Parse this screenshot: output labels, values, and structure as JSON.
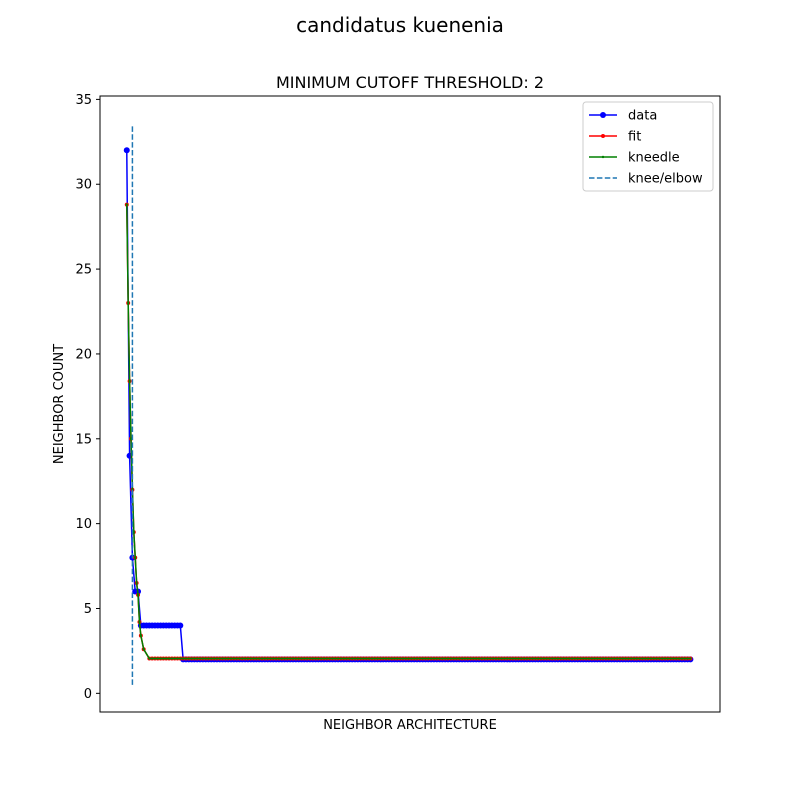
{
  "chart_data": {
    "type": "line",
    "suptitle": "candidatus kuenenia",
    "title": "MINIMUM CUTOFF THRESHOLD: 2",
    "xlabel": "NEIGHBOR ARCHITECTURE",
    "ylabel": "NEIGHBOR COUNT",
    "xlim": [
      -9.5,
      210.5
    ],
    "ylim": [
      -1.1,
      35.2
    ],
    "yticks": [
      0,
      5,
      10,
      15,
      20,
      25,
      30,
      35
    ],
    "xticks_shown": false,
    "legend_position": "top-right",
    "series": [
      {
        "name": "data",
        "color": "#0000ff",
        "marker": "circle",
        "dashed": false,
        "x": [
          0,
          1,
          2,
          3,
          4,
          5,
          6,
          7,
          8,
          9,
          10,
          11,
          12,
          13,
          14,
          15,
          16,
          17,
          18,
          19,
          20,
          200
        ],
        "y": [
          32,
          14,
          8,
          6,
          6,
          4,
          4,
          4,
          4,
          4,
          4,
          4,
          4,
          4,
          4,
          4,
          4,
          4,
          4,
          4,
          2,
          2
        ]
      },
      {
        "name": "fit",
        "color": "#ff0000",
        "marker": "point",
        "dashed": false,
        "x": [
          0,
          0.5,
          1,
          1.5,
          2,
          2.5,
          3,
          3.5,
          4,
          4.5,
          5,
          6,
          8,
          200
        ],
        "y": [
          28.8,
          23,
          18.4,
          15,
          12,
          9.5,
          8,
          6.5,
          5.8,
          4.2,
          3.4,
          2.6,
          2.05,
          2.05
        ]
      },
      {
        "name": "kneedle",
        "color": "#008000",
        "marker": "tiny",
        "dashed": false,
        "x": [
          0,
          0.5,
          1,
          1.5,
          2,
          2.5,
          3,
          3.5,
          4,
          4.5,
          5,
          6,
          8,
          200
        ],
        "y": [
          28.8,
          23,
          18.4,
          15,
          12,
          9.5,
          8,
          6.5,
          5.8,
          4.2,
          3.4,
          2.6,
          2.05,
          2.05
        ]
      },
      {
        "name": "knee/elbow",
        "color": "#1f77b4",
        "marker": "none",
        "dashed": true,
        "vline_x": 2,
        "vline_y": [
          0.5,
          33.5
        ]
      }
    ]
  }
}
